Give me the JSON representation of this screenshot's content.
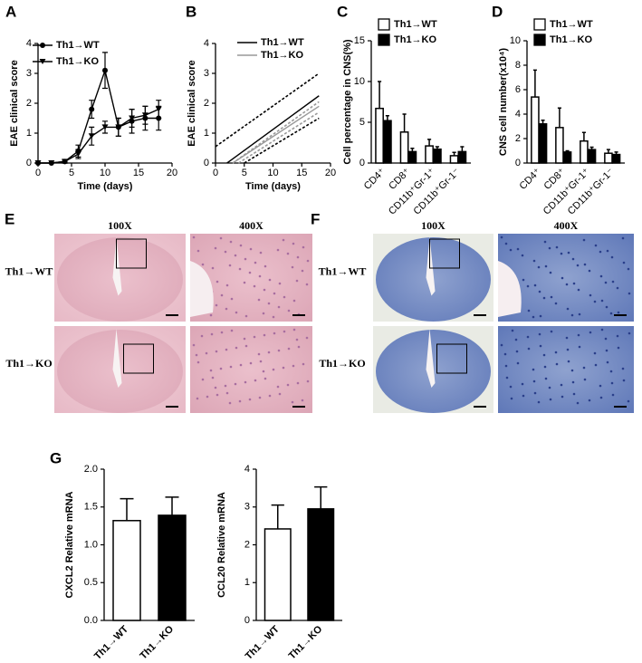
{
  "chart_data": [
    {
      "type": "line",
      "panel_label": "A",
      "xlabel": "Time (days)",
      "ylabel": "EAE clinical score",
      "x": [
        0,
        2,
        4,
        6,
        8,
        10,
        12,
        14,
        16,
        18
      ],
      "series": [
        {
          "name": "Th1→WT",
          "color": "#000000",
          "marker": "circle",
          "values": [
            0,
            0,
            0.05,
            0.4,
            1.8,
            3.1,
            1.2,
            1.4,
            1.5,
            1.5
          ],
          "errors": [
            0,
            0,
            0.05,
            0.2,
            0.3,
            0.6,
            0.3,
            0.4,
            0.4,
            0.4
          ]
        },
        {
          "name": "Th1→KO",
          "color": "#000000",
          "marker": "triangle",
          "values": [
            0,
            0,
            0.05,
            0.3,
            0.9,
            1.2,
            1.2,
            1.5,
            1.6,
            1.8
          ],
          "errors": [
            0,
            0,
            0.05,
            0.15,
            0.3,
            0.2,
            0.3,
            0.3,
            0.3,
            0.3
          ]
        }
      ],
      "xlim": [
        0,
        20
      ],
      "xticks": [
        0,
        5,
        10,
        15,
        20
      ],
      "ylim": [
        0,
        4
      ],
      "yticks": [
        0,
        1,
        2,
        3,
        4
      ]
    },
    {
      "type": "line",
      "panel_label": "B",
      "xlabel": "Time (days)",
      "ylabel": "EAE clinical score",
      "series": [
        {
          "name": "Th1→WT",
          "color": "#000000",
          "x": [
            2,
            18
          ],
          "values": [
            0,
            2.25
          ]
        },
        {
          "name": "Th1→KO",
          "color": "#999999",
          "x": [
            3,
            18
          ],
          "values": [
            0,
            1.9
          ]
        },
        {
          "color": "#000000",
          "dash": true,
          "x": [
            0,
            18
          ],
          "values": [
            0.55,
            3.0
          ]
        },
        {
          "color": "#000000",
          "dash": true,
          "x": [
            5,
            18
          ],
          "values": [
            0,
            1.5
          ]
        },
        {
          "color": "#999999",
          "dash": true,
          "x": [
            3,
            18
          ],
          "values": [
            0,
            2.05
          ]
        },
        {
          "color": "#999999",
          "dash": true,
          "x": [
            4,
            18
          ],
          "values": [
            0,
            1.7
          ]
        }
      ],
      "xlim": [
        0,
        20
      ],
      "xticks": [
        0,
        5,
        10,
        15,
        20
      ],
      "ylim": [
        0,
        4
      ],
      "yticks": [
        0,
        1,
        2,
        3,
        4
      ]
    },
    {
      "type": "bar",
      "panel_label": "C",
      "ylabel": "Cell percentage in CNS(%)",
      "categories": [
        "CD4⁺",
        "CD8⁺",
        "CD11b⁺Gr-1⁺",
        "CD11b⁺Gr-1⁻"
      ],
      "series": [
        {
          "name": "Th1→WT",
          "color": "#ffffff",
          "values": [
            6.7,
            3.8,
            2.1,
            0.9
          ],
          "errors": [
            3.3,
            2.2,
            0.8,
            0.4
          ]
        },
        {
          "name": "Th1→KO",
          "color": "#000000",
          "values": [
            5.2,
            1.4,
            1.7,
            1.4
          ],
          "errors": [
            0.6,
            0.4,
            0.3,
            0.6
          ]
        }
      ],
      "ylim": [
        0,
        15
      ],
      "yticks": [
        0,
        5,
        10,
        15
      ]
    },
    {
      "type": "bar",
      "panel_label": "D",
      "ylabel": "CNS cell number(x10⁴)",
      "categories": [
        "CD4⁺",
        "CD8⁺",
        "CD11b⁺Gr-1⁺",
        "CD11b⁺Gr-1⁻"
      ],
      "series": [
        {
          "name": "Th1→WT",
          "color": "#ffffff",
          "values": [
            5.4,
            2.9,
            1.8,
            0.8
          ],
          "errors": [
            2.2,
            1.6,
            0.7,
            0.3
          ]
        },
        {
          "name": "Th1→KO",
          "color": "#000000",
          "values": [
            3.2,
            0.9,
            1.1,
            0.7
          ],
          "errors": [
            0.3,
            0.1,
            0.2,
            0.2
          ]
        }
      ],
      "ylim": [
        0,
        10
      ],
      "yticks": [
        0,
        2,
        4,
        6,
        8,
        10
      ]
    },
    {
      "type": "bar",
      "panel_label": "G",
      "ylabel": "CXCL2 Relative mRNA",
      "categories": [
        "Th1→WT",
        "Th1→KO"
      ],
      "values": [
        1.32,
        1.39
      ],
      "errors": [
        0.29,
        0.24
      ],
      "colors": [
        "#ffffff",
        "#000000"
      ],
      "ylim": [
        0,
        2
      ],
      "yticks": [
        {
          "value": 0,
          "label": "0.0"
        },
        0.5,
        {
          "value": 1,
          "label": "1.0"
        },
        1.5,
        {
          "value": 2,
          "label": "2.0"
        }
      ]
    },
    {
      "type": "bar",
      "ylabel": "CCL20 Relative mRNA",
      "categories": [
        "Th1→WT",
        "Th1→KO"
      ],
      "values": [
        2.42,
        2.95
      ],
      "errors": [
        0.63,
        0.58
      ],
      "colors": [
        "#ffffff",
        "#000000"
      ],
      "ylim": [
        0,
        4
      ],
      "yticks": [
        0,
        1,
        2,
        3,
        4
      ]
    }
  ],
  "images": [
    {
      "panel_label": "E",
      "columns": [
        "100X",
        "400X"
      ],
      "rows": [
        "Th1→WT",
        "Th1→KO"
      ]
    },
    {
      "panel_label": "F",
      "columns": [
        "100X",
        "400X"
      ],
      "rows": [
        "Th1→WT",
        "Th1→KO"
      ]
    }
  ]
}
